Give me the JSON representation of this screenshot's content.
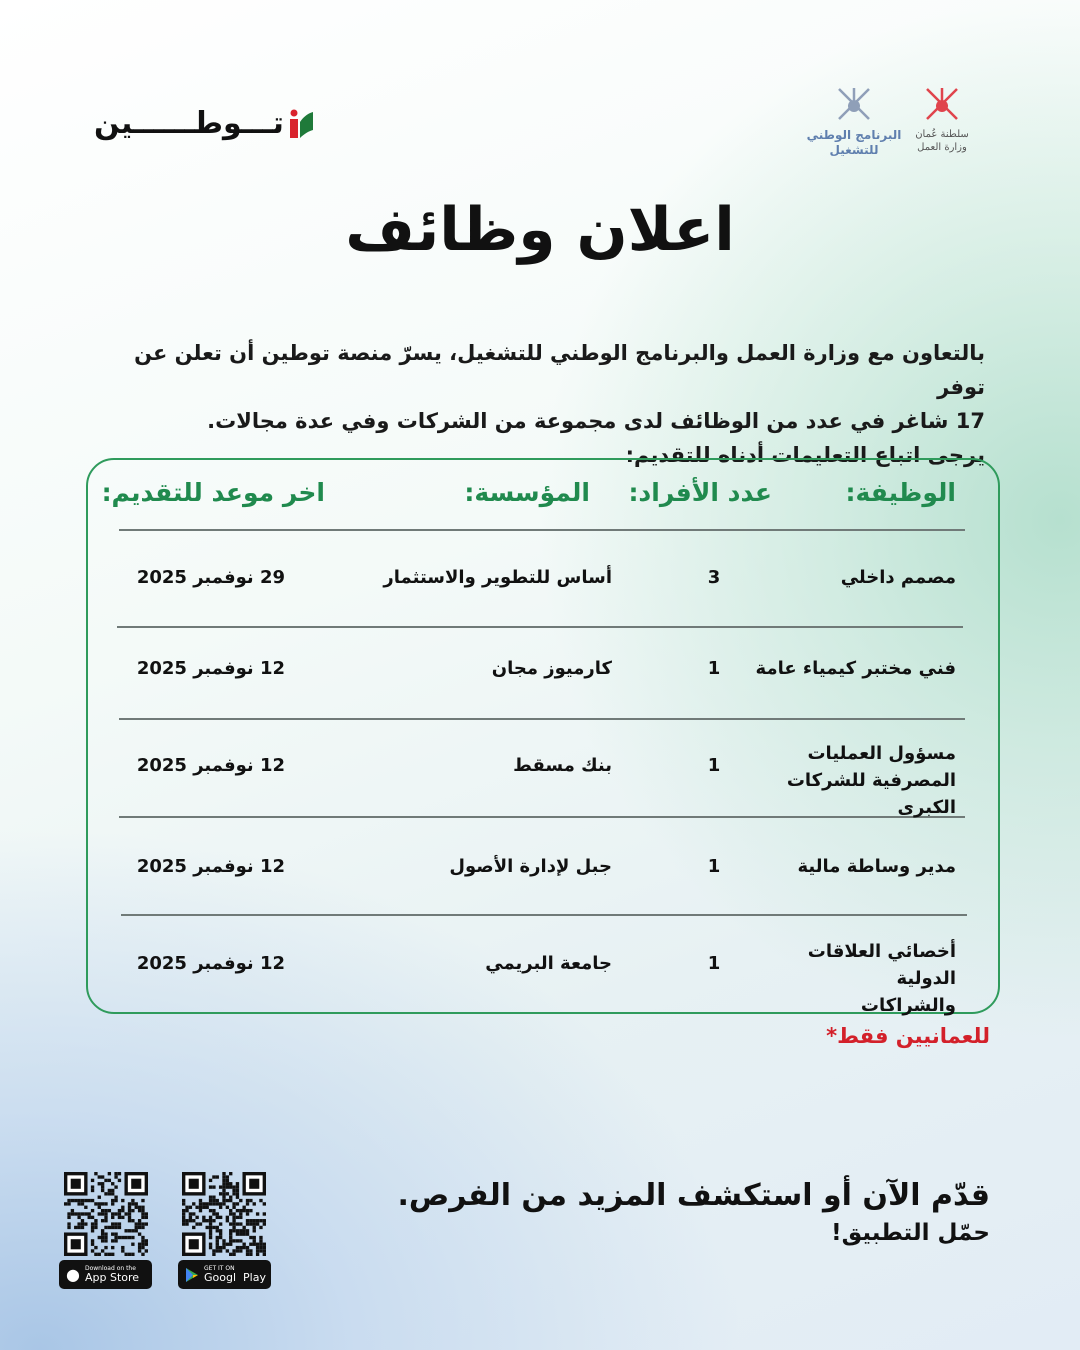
{
  "brand": {
    "logo_text": "تـــوطــــــين",
    "colors": {
      "red": "#d9232d",
      "green": "#1f7a3a",
      "accent": "#2f9b5c"
    }
  },
  "partners": {
    "ministry_labor": "سلطنة عُمان وزارة العمل",
    "national_program": "البرنامج الوطني للتشغيل"
  },
  "title": "اعلان وظائف",
  "intro": [
    "بالتعاون مع وزارة العمل والبرنامج الوطني للتشغيل، يسرّ منصة توطين أن تعلن عن توفر",
    "17 شاغر في عدد من الوظائف لدى مجموعة من الشركات وفي عدة مجالات.",
    "يرجى اتباع التعليمات أدناه للتقديم:"
  ],
  "table": {
    "headers": {
      "job": "الوظيفة:",
      "count": "عدد الأفراد:",
      "org": "المؤسسة:",
      "deadline": "اخر موعد للتقديم:"
    },
    "rows": [
      {
        "job": "مصمم داخلي",
        "count": "3",
        "org": "أساس للتطوير والاستثمار",
        "deadline": "29 نوفمبر 2025"
      },
      {
        "job": "فني مختبر كيمياء عامة",
        "count": "1",
        "org": "كارميوز مجان",
        "deadline": "12 نوفمبر 2025"
      },
      {
        "job": "مسؤول العمليات المصرفية للشركات الكبرى",
        "count": "1",
        "org": "بنك مسقط",
        "deadline": "12 نوفمبر 2025"
      },
      {
        "job": "مدير وساطة مالية",
        "count": "1",
        "org": "جبل لإدارة الأصول",
        "deadline": "12 نوفمبر 2025"
      },
      {
        "job": "أخصائي العلاقات الدولية والشراكات",
        "count": "1",
        "org": "جامعة البريمي",
        "deadline": "12 نوفمبر 2025"
      }
    ]
  },
  "note": "للعمانيين فقط*",
  "cta": {
    "line1": "قدّم الآن أو استكشف المزيد من الفرص.",
    "line2": "حمّل التطبيق!"
  },
  "stores": {
    "apple": {
      "small": "Download on the",
      "big": "App Store"
    },
    "google": {
      "small": "GET IT ON",
      "big": "Googl  Play"
    }
  }
}
